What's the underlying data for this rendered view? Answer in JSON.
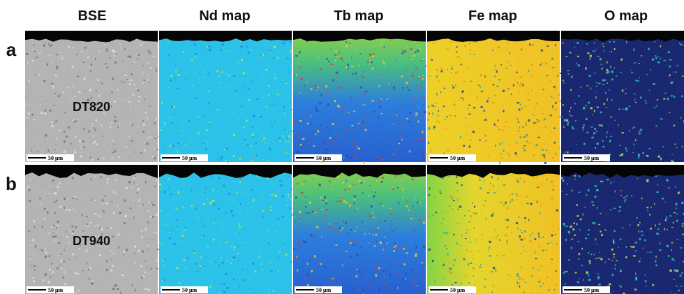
{
  "columns": [
    "BSE",
    "Nd map",
    "Tb map",
    "Fe map",
    "O map"
  ],
  "rows": [
    {
      "label": "a",
      "sample": "DT820"
    },
    {
      "label": "b",
      "sample": "DT940"
    }
  ],
  "scale_bar": "50 μm"
}
